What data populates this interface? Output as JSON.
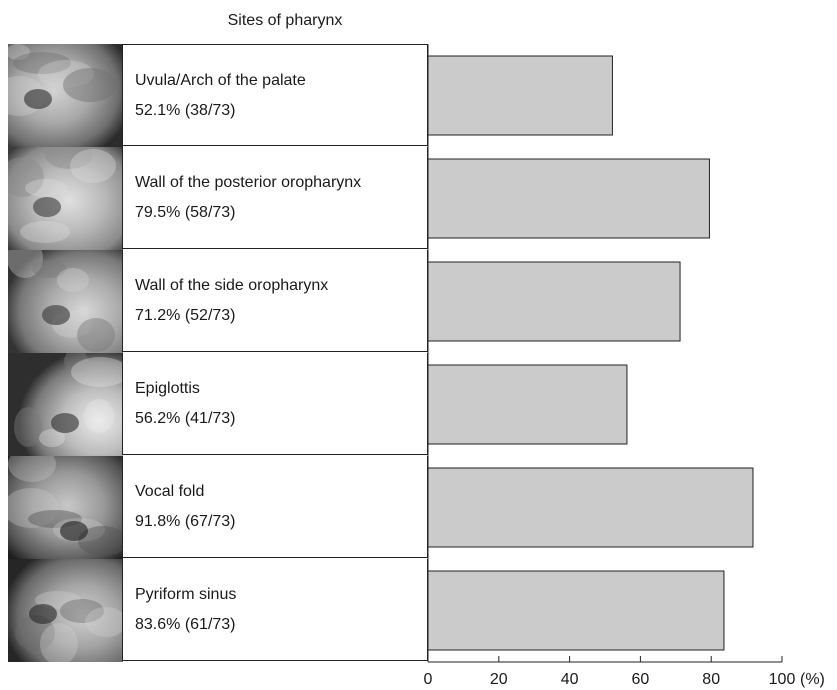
{
  "chart_data": {
    "type": "bar",
    "orientation": "horizontal",
    "title": "Sites of pharynx",
    "categories": [
      "Uvula/Arch of the palate",
      "Wall of the posterior oropharynx",
      "Wall of the side oropharynx",
      "Epiglottis",
      "Vocal fold",
      "Pyriform sinus"
    ],
    "values": [
      52.1,
      79.5,
      71.2,
      56.2,
      91.8,
      83.6
    ],
    "labels": [
      "52.1% (38/73)",
      "79.5% (58/73)",
      "71.2% (52/73)",
      "56.2% (41/73)",
      "91.8% (67/73)",
      "83.6% (61/73)"
    ],
    "x_unit": "(%)",
    "xlim": [
      0,
      100
    ],
    "xticks": [
      0,
      20,
      40,
      60,
      80,
      100
    ],
    "bar_color": "#cbcbcb",
    "grid": false
  },
  "thumbnails": [
    "uvula-photo",
    "posterior-oropharynx-photo",
    "side-oropharynx-photo",
    "epiglottis-photo",
    "vocal-fold-photo",
    "pyriform-sinus-photo"
  ]
}
